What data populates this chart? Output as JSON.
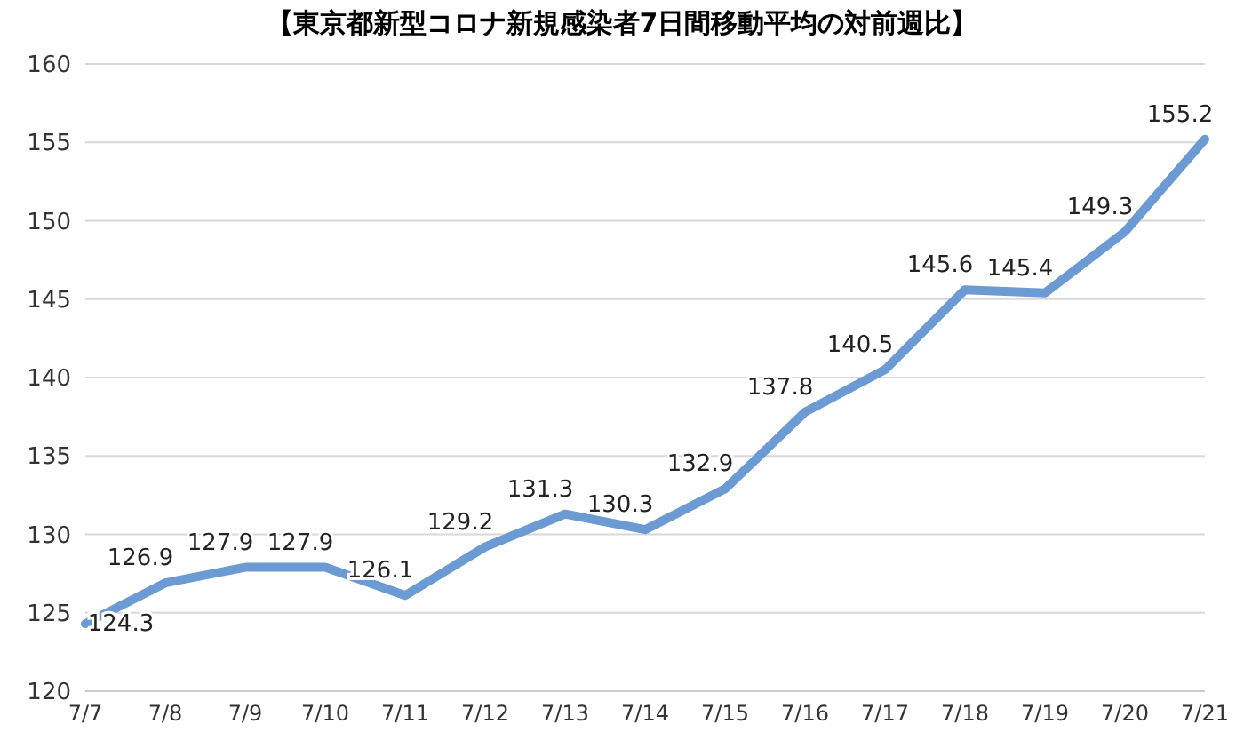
{
  "chart_data": {
    "type": "line",
    "title": "【東京都新型コロナ新規感染者7日間移動平均の対前週比】",
    "categories": [
      "7/7",
      "7/8",
      "7/9",
      "7/10",
      "7/11",
      "7/12",
      "7/13",
      "7/14",
      "7/15",
      "7/16",
      "7/17",
      "7/18",
      "7/19",
      "7/20",
      "7/21"
    ],
    "series": [
      {
        "color": "#6b9bd2",
        "values": [
          124.3,
          126.9,
          127.9,
          127.9,
          126.1,
          129.2,
          131.3,
          130.3,
          132.9,
          137.8,
          140.5,
          145.6,
          145.4,
          149.3,
          155.2
        ]
      }
    ],
    "ylim": [
      120,
      160
    ],
    "yticks": [
      120,
      125,
      130,
      135,
      140,
      145,
      150,
      155,
      160
    ],
    "grid": "y",
    "data_labels": true,
    "marker": "none",
    "line_style": "solid",
    "legend": false
  }
}
